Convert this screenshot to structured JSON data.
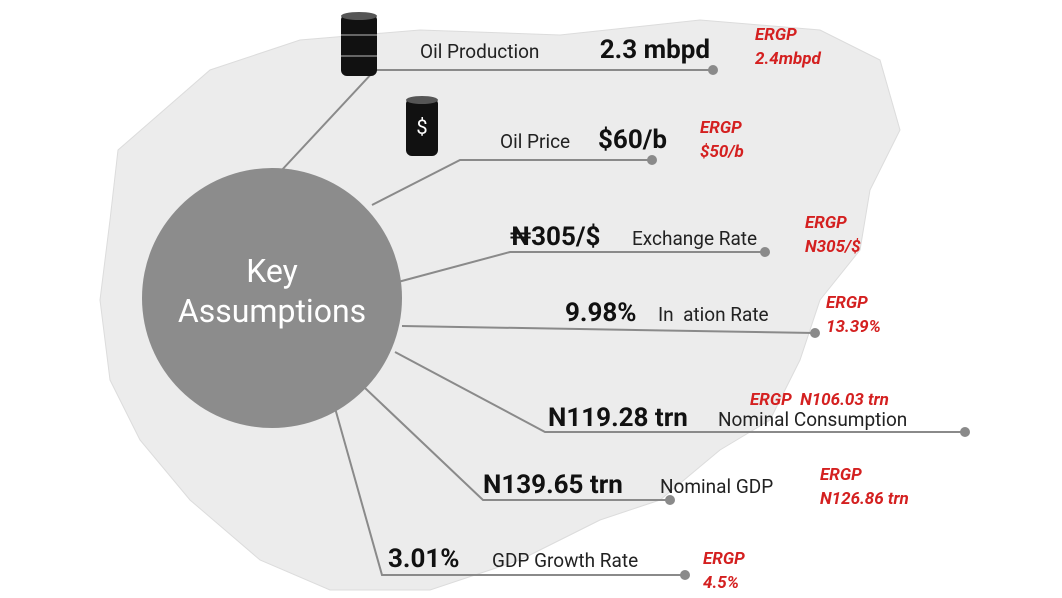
{
  "center": {
    "title_lines": [
      "Key",
      "Assumptions"
    ]
  },
  "items": [
    {
      "value": "2.3 mbpd",
      "label": "Oil Production",
      "ergp": [
        "ERGP",
        "2.4mbpd"
      ]
    },
    {
      "value": "$60/b",
      "label": "Oil Price",
      "ergp": [
        "ERGP",
        "$50/b"
      ]
    },
    {
      "value": "₦305/$",
      "label": "Exchange Rate",
      "ergp": [
        "ERGP",
        "N305/$"
      ]
    },
    {
      "value": "9.98%",
      "label": "In  ation Rate",
      "ergp": [
        "ERGP",
        "13.39%"
      ]
    },
    {
      "value": "N119.28 trn",
      "label": "Nominal Consumption",
      "ergp": [
        "ERGP  N106.03 trn"
      ]
    },
    {
      "value": "N139.65 trn",
      "label": "Nominal GDP",
      "ergp": [
        "ERGP",
        "N126.86 trn"
      ]
    },
    {
      "value": "3.01%",
      "label": "GDP Growth Rate",
      "ergp": [
        "ERGP",
        "4.5%"
      ]
    }
  ]
}
